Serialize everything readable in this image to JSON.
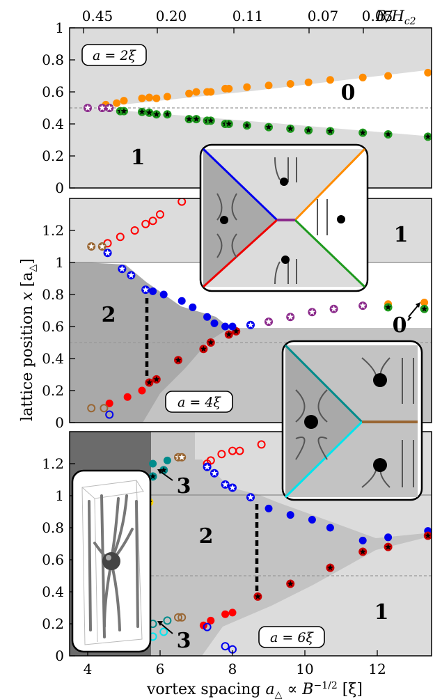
{
  "chart_data": [
    {
      "type": "scatter",
      "panel": "top",
      "label": "a = 2ξ",
      "xlim": [
        3.5,
        13.5
      ],
      "ylim": [
        0,
        1
      ],
      "yticks": [
        "0",
        "0.2",
        "0.4",
        "0.6",
        "0.8",
        "1"
      ],
      "top_axis_label": "B/H_c2",
      "top_ticks": [
        "0.45",
        "0.20",
        "0.11",
        "0.07",
        "0.05"
      ],
      "region_labels": [
        "0",
        "1"
      ],
      "series": [
        {
          "name": "",
          "color": "#ff8c00",
          "marker": "dot",
          "x": [
            4.5,
            4.8,
            5.0,
            5.5,
            5.7,
            5.9,
            6.2,
            6.8,
            7.0,
            7.3,
            7.4,
            7.8,
            7.9,
            8.4,
            9.0,
            9.6,
            10.1,
            10.7,
            11.6,
            12.3,
            13.4
          ],
          "y": [
            0.52,
            0.53,
            0.545,
            0.56,
            0.565,
            0.56,
            0.57,
            0.59,
            0.6,
            0.6,
            0.6,
            0.62,
            0.62,
            0.63,
            0.64,
            0.65,
            0.66,
            0.675,
            0.69,
            0.7,
            0.72
          ]
        },
        {
          "name": "",
          "color": "#1f9a1f",
          "marker": "star-dot",
          "x": [
            4.6,
            4.9,
            5.0,
            5.5,
            5.7,
            5.9,
            6.2,
            6.8,
            7.0,
            7.3,
            7.4,
            7.8,
            7.9,
            8.4,
            9.0,
            9.6,
            10.1,
            10.7,
            11.6,
            12.3,
            13.4
          ],
          "y": [
            0.5,
            0.48,
            0.48,
            0.475,
            0.47,
            0.46,
            0.46,
            0.43,
            0.43,
            0.42,
            0.42,
            0.4,
            0.4,
            0.39,
            0.38,
            0.37,
            0.36,
            0.355,
            0.345,
            0.335,
            0.32
          ]
        },
        {
          "name": "",
          "color": "#8b2a8b",
          "marker": "star-open",
          "x": [
            4.0,
            4.4,
            4.6
          ],
          "y": [
            0.5,
            0.5,
            0.5
          ]
        }
      ]
    },
    {
      "type": "scatter",
      "panel": "middle",
      "label": "a = 4ξ",
      "xlim": [
        3.5,
        13.5
      ],
      "ylim": [
        0,
        1.4
      ],
      "yticks": [
        "0",
        "0.2",
        "0.4",
        "0.6",
        "0.8",
        "1",
        "1.2"
      ],
      "region_labels": [
        "1",
        "2",
        "0′"
      ],
      "series": [
        {
          "name": "",
          "color": "#ff0000",
          "marker": "open",
          "x": [
            4.55,
            4.9,
            5.3,
            5.6,
            5.8,
            6.0,
            6.6
          ],
          "y": [
            1.12,
            1.16,
            1.2,
            1.24,
            1.26,
            1.3,
            1.38
          ]
        },
        {
          "name": "",
          "color": "#ff0000",
          "marker": "dot",
          "x": [
            4.6,
            5.1,
            5.5
          ],
          "y": [
            0.12,
            0.16,
            0.2
          ]
        },
        {
          "name": "",
          "color": "#cc0000",
          "marker": "star-dot",
          "x": [
            5.7,
            5.9,
            6.5,
            7.2,
            7.4,
            7.9,
            8.1
          ],
          "y": [
            0.25,
            0.27,
            0.39,
            0.46,
            0.5,
            0.55,
            0.57
          ]
        },
        {
          "name": "",
          "color": "#0000ee",
          "marker": "dot",
          "x": [
            5.8,
            6.1,
            6.6,
            6.9,
            7.3,
            7.5,
            7.8,
            8.0
          ],
          "y": [
            0.82,
            0.8,
            0.76,
            0.72,
            0.66,
            0.62,
            0.6,
            0.6
          ]
        },
        {
          "name": "",
          "color": "#0000ee",
          "marker": "star-open",
          "x": [
            4.55,
            4.95,
            5.2,
            5.6,
            8.5
          ],
          "y": [
            1.06,
            0.96,
            0.92,
            0.83,
            0.61
          ]
        },
        {
          "name": "",
          "color": "#0000ee",
          "marker": "open",
          "x": [
            4.6
          ],
          "y": [
            0.05
          ]
        },
        {
          "name": "",
          "color": "#8b2a8b",
          "marker": "star-open",
          "x": [
            9.0,
            9.6,
            10.2,
            10.8,
            11.6
          ],
          "y": [
            0.63,
            0.66,
            0.69,
            0.71,
            0.73
          ]
        },
        {
          "name": "",
          "color": "#ff8c00",
          "marker": "dot",
          "x": [
            12.3,
            13.3
          ],
          "y": [
            0.74,
            0.75
          ]
        },
        {
          "name": "",
          "color": "#1f9a1f",
          "marker": "star-dot",
          "x": [
            12.3,
            13.3
          ],
          "y": [
            0.72,
            0.71
          ]
        },
        {
          "name": "",
          "color": "#996633",
          "marker": "star-open",
          "x": [
            4.1,
            4.4
          ],
          "y": [
            1.1,
            1.1
          ]
        },
        {
          "name": "",
          "color": "#996633",
          "marker": "open",
          "x": [
            4.1,
            4.45
          ],
          "y": [
            0.09,
            0.09
          ]
        }
      ]
    },
    {
      "type": "scatter",
      "panel": "bottom",
      "label": "a = 6ξ",
      "xlim": [
        3.5,
        13.5
      ],
      "ylim": [
        0,
        1.4
      ],
      "yticks": [
        "0",
        "0.2",
        "0.4",
        "0.6",
        "0.8",
        "1",
        "1.2"
      ],
      "xlabel": "vortex spacing a_△ ∝ B^{-1/2} [ξ]",
      "xticks": [
        "4",
        "6",
        "8",
        "10",
        "12"
      ],
      "ylabel": "lattice position x [a_△]",
      "region_labels": [
        "1",
        "2",
        "3",
        "3"
      ],
      "series": [
        {
          "name": "",
          "color": "#ffd700",
          "marker": "star-dot",
          "x": [
            4.1,
            4.4,
            4.55,
            5.0,
            5.5,
            5.7
          ],
          "y": [
            0.9,
            0.9,
            0.94,
            0.94,
            1.01,
            0.96
          ]
        },
        {
          "name": "",
          "color": "#008b8b",
          "marker": "dot",
          "x": [
            5.8,
            6.2
          ],
          "y": [
            1.2,
            1.22
          ]
        },
        {
          "name": "",
          "color": "#008b8b",
          "marker": "star-dot",
          "x": [
            5.8,
            6.1
          ],
          "y": [
            1.12,
            1.16
          ]
        },
        {
          "name": "",
          "color": "#996633",
          "marker": "star-open",
          "x": [
            6.5,
            6.6
          ],
          "y": [
            1.24,
            1.24
          ]
        },
        {
          "name": "",
          "color": "#ff0000",
          "marker": "open",
          "x": [
            7.3,
            7.4,
            7.7,
            8.0,
            8.2,
            8.8
          ],
          "y": [
            1.2,
            1.22,
            1.26,
            1.28,
            1.28,
            1.32
          ]
        },
        {
          "name": "",
          "color": "#0000ee",
          "marker": "star-open",
          "x": [
            7.3,
            7.5,
            7.8,
            8.0,
            8.5
          ],
          "y": [
            1.18,
            1.14,
            1.07,
            1.05,
            0.99
          ]
        },
        {
          "name": "",
          "color": "#0000ee",
          "marker": "dot",
          "x": [
            9.0,
            9.6,
            10.2,
            10.7,
            11.6,
            12.3,
            13.4
          ],
          "y": [
            0.92,
            0.88,
            0.85,
            0.8,
            0.72,
            0.74,
            0.78
          ]
        },
        {
          "name": "",
          "color": "#cc0000",
          "marker": "star-dot",
          "x": [
            8.7,
            9.6,
            10.7,
            11.6,
            12.3,
            13.4
          ],
          "y": [
            0.37,
            0.45,
            0.55,
            0.65,
            0.68,
            0.75
          ]
        },
        {
          "name": "",
          "color": "#ff0000",
          "marker": "dot",
          "x": [
            7.2,
            7.4,
            7.8,
            8.0
          ],
          "y": [
            0.19,
            0.22,
            0.26,
            0.27
          ]
        },
        {
          "name": "",
          "color": "#008b8b",
          "marker": "open",
          "x": [
            5.8,
            6.2
          ],
          "y": [
            0.2,
            0.22
          ]
        },
        {
          "name": "",
          "color": "#00e5ee",
          "marker": "open",
          "x": [
            5.8,
            6.1
          ],
          "y": [
            0.12,
            0.15
          ]
        },
        {
          "name": "",
          "color": "#996633",
          "marker": "open",
          "x": [
            6.5,
            6.6
          ],
          "y": [
            0.24,
            0.24
          ]
        },
        {
          "name": "",
          "color": "#0000ee",
          "marker": "open",
          "x": [
            7.3,
            7.8,
            8.0
          ],
          "y": [
            0.18,
            0.06,
            0.04
          ]
        }
      ]
    }
  ]
}
